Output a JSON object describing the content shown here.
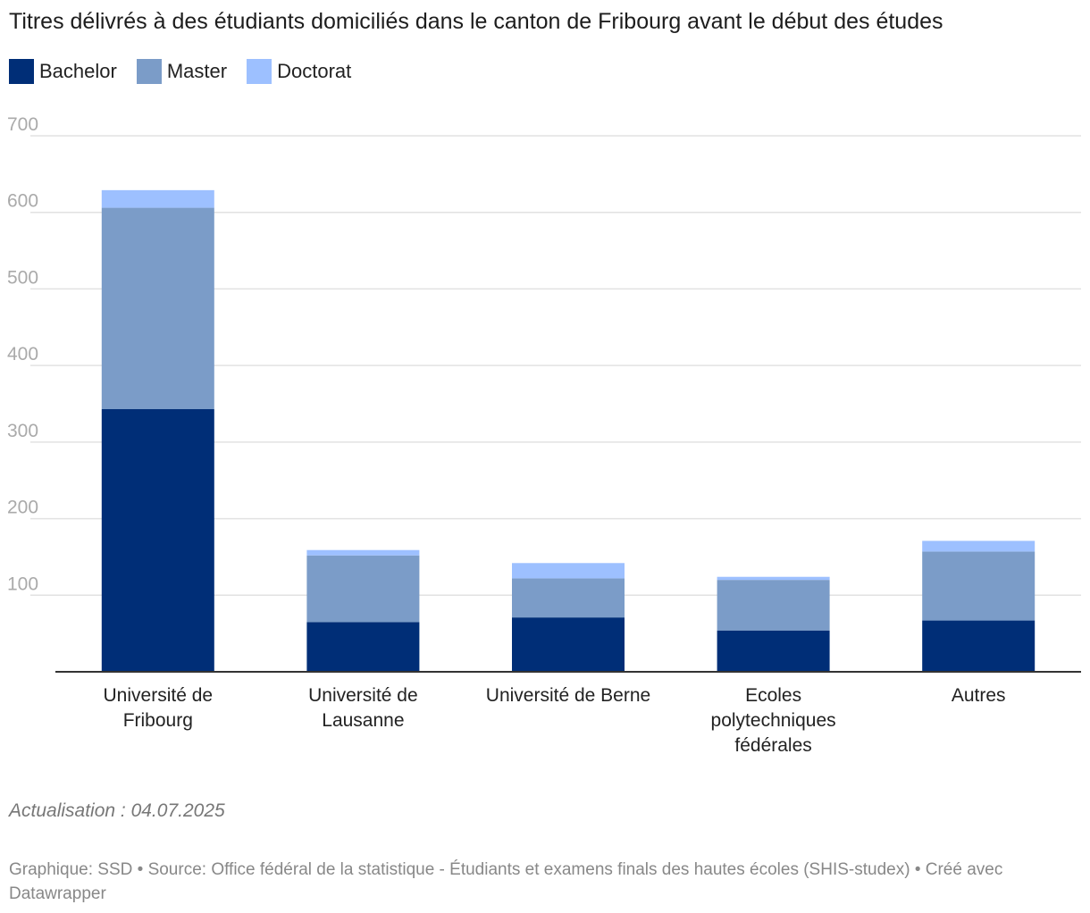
{
  "chart_data": {
    "type": "bar",
    "stacked": true,
    "title": "Titres délivrés à des étudiants domiciliés dans le canton de Fribourg avant le début des études",
    "xlabel": "",
    "ylabel": "",
    "ylim": [
      0,
      700
    ],
    "yticks": [
      "100",
      "200",
      "300",
      "400",
      "500",
      "600",
      "700"
    ],
    "grid": true,
    "legend_position": "top-left",
    "categories": [
      [
        "Université de",
        "Fribourg"
      ],
      [
        "Université de",
        "Lausanne"
      ],
      [
        "Université de Berne"
      ],
      [
        "Ecoles",
        "polytechniques",
        "fédérales"
      ],
      [
        "Autres"
      ]
    ],
    "series": [
      {
        "name": "Bachelor",
        "color": "#002e77",
        "values": [
          343,
          65,
          71,
          54,
          67
        ]
      },
      {
        "name": "Master",
        "color": "#7b9cc8",
        "values": [
          263,
          87,
          51,
          66,
          90
        ]
      },
      {
        "name": "Doctorat",
        "color": "#9dc0ff",
        "values": [
          23,
          7,
          20,
          4,
          14
        ]
      }
    ],
    "annotations": {
      "update": "Actualisation : 04.07.2025",
      "footer": "Graphique: SSD • Source: Office fédéral de la statistique - Étudiants et examens finals des hautes écoles (SHIS-studex) • Créé avec Datawrapper"
    }
  }
}
